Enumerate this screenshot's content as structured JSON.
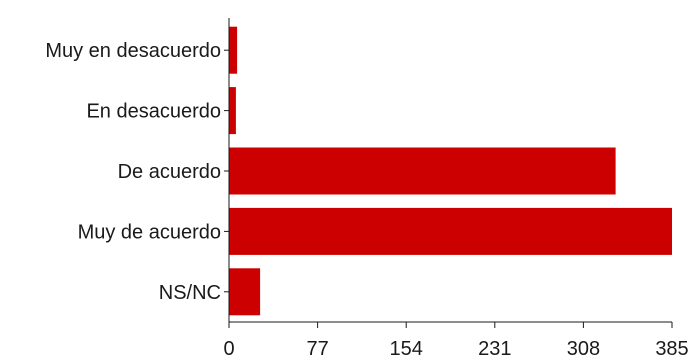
{
  "chart_data": {
    "type": "bar",
    "orientation": "horizontal",
    "categories": [
      "Muy en desacuerdo",
      "En desacuerdo",
      "De acuerdo",
      "Muy de acuerdo",
      "NS/NC"
    ],
    "values": [
      7,
      6,
      336,
      385,
      27
    ],
    "xlim": [
      0,
      385
    ],
    "xticks": [
      "0",
      "77",
      "154",
      "231",
      "308",
      "385"
    ],
    "grid": false,
    "legend": "none",
    "bar_color": "#cc0000"
  }
}
